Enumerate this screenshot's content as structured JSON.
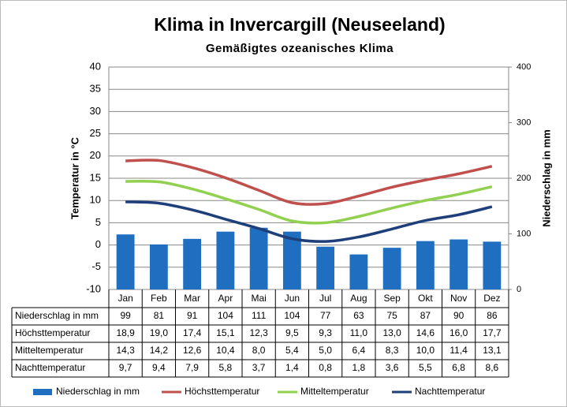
{
  "chart_data": {
    "type": "bar_line",
    "title": "Klima in Invercargill (Neuseeland)",
    "subtitle": "Gemäßigtes ozeanisches Klima",
    "y_label": "Temperatur in °C",
    "y2_label": "Niederschlag in mm",
    "categories": [
      "Jan",
      "Feb",
      "Mar",
      "Apr",
      "Mai",
      "Jun",
      "Jul",
      "Aug",
      "Sep",
      "Okt",
      "Nov",
      "Dez"
    ],
    "ylim": [
      -10,
      40
    ],
    "yticks": [
      -10,
      -5,
      0,
      5,
      10,
      15,
      20,
      25,
      30,
      35,
      40
    ],
    "y2lim": [
      0,
      400
    ],
    "y2ticks": [
      0,
      100,
      200,
      300,
      400
    ],
    "grid": true,
    "legend": "bottom",
    "series": [
      {
        "name": "Niederschlag in mm",
        "kind": "bar",
        "axis": "y2",
        "color": "#1f6ebf",
        "values": [
          99,
          81,
          91,
          104,
          111,
          104,
          77,
          63,
          75,
          87,
          90,
          86
        ]
      },
      {
        "name": "Höchsttemperatur",
        "kind": "line",
        "color": "#c0504d",
        "values": [
          18.9,
          19.0,
          17.4,
          15.1,
          12.3,
          9.5,
          9.3,
          11.0,
          13.0,
          14.6,
          16.0,
          17.7
        ],
        "value_labels": [
          "18,9",
          "19,0",
          "17,4",
          "15,1",
          "12,3",
          "9,5",
          "9,3",
          "11,0",
          "13,0",
          "14,6",
          "16,0",
          "17,7"
        ]
      },
      {
        "name": "Mitteltemperatur",
        "kind": "line",
        "color": "#92d050",
        "values": [
          14.3,
          14.2,
          12.6,
          10.4,
          8.0,
          5.4,
          5.0,
          6.4,
          8.3,
          10.0,
          11.4,
          13.1
        ],
        "value_labels": [
          "14,3",
          "14,2",
          "12,6",
          "10,4",
          "8,0",
          "5,4",
          "5,0",
          "6,4",
          "8,3",
          "10,0",
          "11,4",
          "13,1"
        ]
      },
      {
        "name": "Nachttemperatur",
        "kind": "line",
        "color": "#1f3f7a",
        "values": [
          9.7,
          9.4,
          7.9,
          5.8,
          3.7,
          1.4,
          0.8,
          1.8,
          3.6,
          5.5,
          6.8,
          8.6
        ],
        "value_labels": [
          "9,7",
          "9,4",
          "7,9",
          "5,8",
          "3,7",
          "1,4",
          "0,8",
          "1,8",
          "3,6",
          "5,5",
          "6,8",
          "8,6"
        ]
      }
    ]
  }
}
